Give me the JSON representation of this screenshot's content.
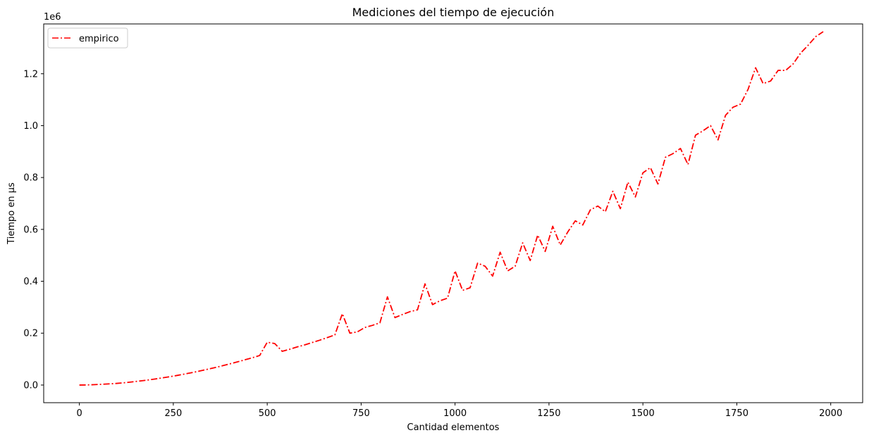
{
  "chart_data": {
    "type": "line",
    "title": "Mediciones del tiempo de ejecución",
    "xlabel": "Cantidad elementos",
    "ylabel": "Tiempo en µs",
    "y_offset_text": "1e6",
    "xlim": [
      -95,
      2085
    ],
    "ylim": [
      -0.068,
      1.392
    ],
    "xticks": [
      0,
      250,
      500,
      750,
      1000,
      1250,
      1500,
      1750,
      2000
    ],
    "yticks": [
      0.0,
      0.2,
      0.4,
      0.6,
      0.8,
      1.0,
      1.2
    ],
    "ytick_labels": [
      "0.0",
      "0.2",
      "0.4",
      "0.6",
      "0.8",
      "1.0",
      "1.2"
    ],
    "grid": false,
    "legend_position": "top-left",
    "series": [
      {
        "name": "empirico",
        "color": "#ff0000",
        "linestyle": "dashdot",
        "x": [
          0,
          20,
          40,
          60,
          80,
          100,
          120,
          140,
          160,
          180,
          200,
          220,
          240,
          260,
          280,
          300,
          320,
          340,
          360,
          380,
          400,
          420,
          440,
          460,
          480,
          500,
          520,
          540,
          560,
          580,
          600,
          620,
          640,
          660,
          680,
          700,
          720,
          740,
          760,
          780,
          800,
          820,
          840,
          860,
          880,
          900,
          920,
          940,
          960,
          980,
          1000,
          1020,
          1040,
          1060,
          1080,
          1100,
          1120,
          1140,
          1160,
          1180,
          1200,
          1220,
          1240,
          1260,
          1280,
          1300,
          1320,
          1340,
          1360,
          1380,
          1400,
          1420,
          1440,
          1460,
          1480,
          1500,
          1520,
          1540,
          1560,
          1580,
          1600,
          1620,
          1640,
          1660,
          1680,
          1700,
          1720,
          1740,
          1760,
          1780,
          1800,
          1820,
          1840,
          1860,
          1880,
          1900,
          1920,
          1940,
          1960,
          1980
        ],
        "values": [
          0.0,
          0.0005,
          0.0015,
          0.003,
          0.0045,
          0.0065,
          0.009,
          0.012,
          0.0155,
          0.019,
          0.023,
          0.0275,
          0.032,
          0.037,
          0.0425,
          0.048,
          0.054,
          0.0605,
          0.067,
          0.074,
          0.0815,
          0.089,
          0.097,
          0.105,
          0.114,
          0.165,
          0.16,
          0.13,
          0.138,
          0.147,
          0.155,
          0.164,
          0.173,
          0.183,
          0.193,
          0.275,
          0.2,
          0.205,
          0.222,
          0.23,
          0.24,
          0.34,
          0.26,
          0.272,
          0.283,
          0.29,
          0.39,
          0.31,
          0.325,
          0.335,
          0.44,
          0.365,
          0.375,
          0.47,
          0.458,
          0.42,
          0.512,
          0.44,
          0.458,
          0.548,
          0.48,
          0.578,
          0.515,
          0.612,
          0.54,
          0.59,
          0.633,
          0.617,
          0.675,
          0.69,
          0.668,
          0.747,
          0.68,
          0.782,
          0.725,
          0.818,
          0.838,
          0.775,
          0.878,
          0.892,
          0.912,
          0.85,
          0.963,
          0.98,
          1.0,
          0.945,
          1.04,
          1.071,
          1.083,
          1.14,
          1.223,
          1.162,
          1.172,
          1.213,
          1.213,
          1.238,
          1.28,
          1.31,
          1.343,
          1.362
        ]
      }
    ]
  }
}
